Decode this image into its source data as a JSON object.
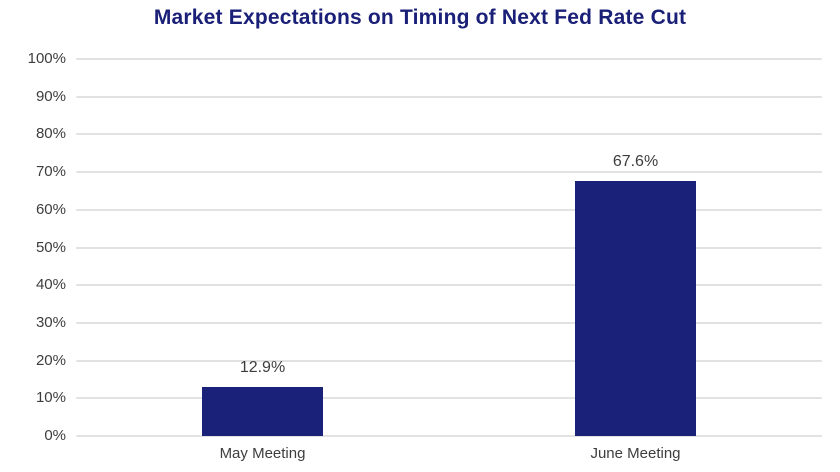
{
  "title": "Market Expectations on Timing of Next Fed Rate Cut",
  "colors": {
    "title": "#1A2077",
    "bar": "#1A2178",
    "axis_text": "#3D3D3D",
    "gridline": "#E2E2E2"
  },
  "chart_data": {
    "type": "bar",
    "title": "Market Expectations on Timing of Next Fed Rate Cut",
    "categories": [
      "May Meeting",
      "June Meeting"
    ],
    "values": [
      12.9,
      67.6
    ],
    "value_labels": [
      "12.9%",
      "67.6%"
    ],
    "xlabel": "",
    "ylabel": "",
    "ylim": [
      0,
      100
    ],
    "ytick_step": 10,
    "ytick_labels": [
      "0%",
      "10%",
      "20%",
      "30%",
      "40%",
      "50%",
      "60%",
      "70%",
      "80%",
      "90%",
      "100%"
    ],
    "grid": true,
    "legend": false,
    "bar_color": "#1A2178",
    "layout": "single-series vertical bars, gridlines horizontal, labels above bars"
  }
}
